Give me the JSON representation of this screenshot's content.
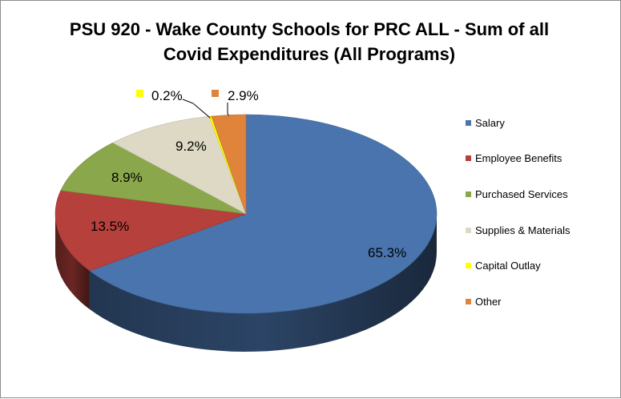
{
  "chart_data": {
    "type": "pie",
    "title_line1": "PSU 920 - Wake County Schools for PRC ALL - Sum of all",
    "title_line2": "Covid Expenditures (All Programs)",
    "categories": [
      "Salary",
      "Employee Benefits",
      "Purchased Services",
      "Supplies & Materials",
      "Capital Outlay",
      "Other"
    ],
    "values": [
      65.3,
      13.5,
      8.9,
      9.2,
      0.2,
      2.9
    ],
    "labels": [
      "65.3%",
      "13.5%",
      "8.9%",
      "9.2%",
      "0.2%",
      "2.9%"
    ],
    "colors": [
      "#4a74ad",
      "#b5403c",
      "#8aa84b",
      "#ddd9c4",
      "#ffff00",
      "#e0843c"
    ],
    "legend_position": "right",
    "style": "3d-pie"
  }
}
